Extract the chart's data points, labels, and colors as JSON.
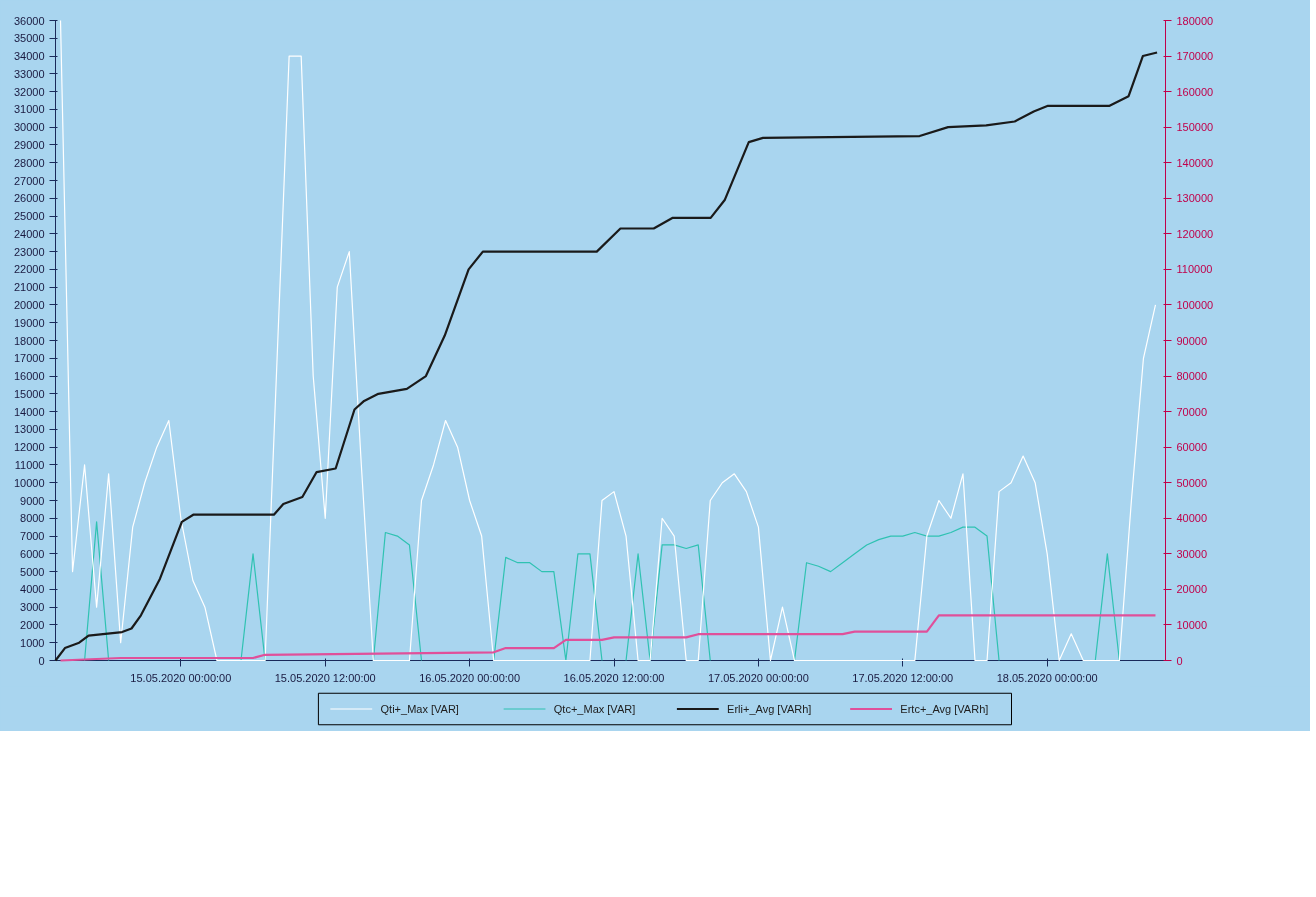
{
  "chart_data": {
    "type": "line",
    "x": [
      "2020-05-14T14:00",
      "2020-05-14T15:00",
      "2020-05-14T16:00",
      "2020-05-14T17:00",
      "2020-05-14T18:00",
      "2020-05-14T19:00",
      "2020-05-14T20:00",
      "2020-05-14T21:00",
      "2020-05-14T22:00",
      "2020-05-14T23:00",
      "2020-05-15T00:00",
      "2020-05-15T01:00",
      "2020-05-15T02:00",
      "2020-05-15T03:00",
      "2020-05-15T04:00",
      "2020-05-15T05:00",
      "2020-05-15T06:00",
      "2020-05-15T07:00",
      "2020-05-15T08:00",
      "2020-05-15T09:00",
      "2020-05-15T10:00",
      "2020-05-15T11:00",
      "2020-05-15T12:00",
      "2020-05-15T13:00",
      "2020-05-15T14:00",
      "2020-05-15T15:00",
      "2020-05-15T16:00",
      "2020-05-15T17:00",
      "2020-05-15T18:00",
      "2020-05-15T19:00",
      "2020-05-15T20:00",
      "2020-05-15T21:00",
      "2020-05-15T22:00",
      "2020-05-15T23:00",
      "2020-05-16T00:00",
      "2020-05-16T01:00",
      "2020-05-16T02:00",
      "2020-05-16T03:00",
      "2020-05-16T04:00",
      "2020-05-16T05:00",
      "2020-05-16T06:00",
      "2020-05-16T07:00",
      "2020-05-16T08:00",
      "2020-05-16T09:00",
      "2020-05-16T10:00",
      "2020-05-16T11:00",
      "2020-05-16T12:00",
      "2020-05-16T13:00",
      "2020-05-16T14:00",
      "2020-05-16T15:00",
      "2020-05-16T16:00",
      "2020-05-16T17:00",
      "2020-05-16T18:00",
      "2020-05-16T19:00",
      "2020-05-16T20:00",
      "2020-05-16T21:00",
      "2020-05-16T22:00",
      "2020-05-16T23:00",
      "2020-05-17T00:00",
      "2020-05-17T01:00",
      "2020-05-17T02:00",
      "2020-05-17T03:00",
      "2020-05-17T04:00",
      "2020-05-17T05:00",
      "2020-05-17T06:00",
      "2020-05-17T07:00",
      "2020-05-17T08:00",
      "2020-05-17T09:00",
      "2020-05-17T10:00",
      "2020-05-17T11:00",
      "2020-05-17T12:00",
      "2020-05-17T13:00",
      "2020-05-17T14:00",
      "2020-05-17T15:00",
      "2020-05-17T16:00",
      "2020-05-17T17:00",
      "2020-05-17T18:00",
      "2020-05-17T19:00",
      "2020-05-17T20:00",
      "2020-05-17T21:00",
      "2020-05-17T22:00",
      "2020-05-17T23:00",
      "2020-05-18T00:00",
      "2020-05-18T01:00",
      "2020-05-18T02:00",
      "2020-05-18T03:00",
      "2020-05-18T04:00",
      "2020-05-18T05:00",
      "2020-05-18T06:00",
      "2020-05-18T07:00",
      "2020-05-18T08:00",
      "2020-05-18T09:00"
    ],
    "series": [
      {
        "name": "Qti+_Max [VAR]",
        "color": "#ffffff",
        "values": [
          36000,
          5000,
          11000,
          3000,
          10500,
          1000,
          7500,
          10000,
          12000,
          13500,
          8000,
          4500,
          3000,
          0,
          0,
          0,
          0,
          0,
          17000,
          34000,
          34000,
          16000,
          8000,
          21000,
          23000,
          11000,
          0,
          0,
          0,
          0,
          9000,
          11000,
          13500,
          12000,
          9000,
          7000,
          0,
          0,
          0,
          0,
          0,
          0,
          0,
          0,
          0,
          9000,
          9500,
          7000,
          0,
          0,
          8000,
          7000,
          0,
          0,
          9000,
          10000,
          10500,
          9500,
          7500,
          0,
          3000,
          0,
          0,
          0,
          0,
          0,
          0,
          0,
          0,
          0,
          0,
          0,
          7000,
          9000,
          8000,
          10500,
          0,
          0,
          9500,
          10000,
          11500,
          10000,
          6000,
          0,
          1500,
          0,
          0,
          0,
          0,
          9000,
          17000,
          20000
        ]
      },
      {
        "name": "Qtc+_Max [VAR]",
        "color": "#2fc2b2",
        "values": [
          null,
          null,
          0,
          7800,
          0,
          null,
          null,
          null,
          null,
          null,
          null,
          null,
          null,
          null,
          null,
          0,
          6000,
          0,
          null,
          null,
          null,
          null,
          null,
          null,
          null,
          null,
          0,
          7200,
          7000,
          6500,
          0,
          null,
          null,
          null,
          null,
          null,
          0,
          5800,
          5500,
          5500,
          5000,
          5000,
          0,
          6000,
          6000,
          0,
          null,
          0,
          6000,
          0,
          6500,
          6500,
          6300,
          6500,
          0,
          null,
          null,
          null,
          null,
          null,
          null,
          0,
          5500,
          5300,
          5000,
          5500,
          6000,
          6500,
          6800,
          7000,
          7000,
          7200,
          7000,
          7000,
          7200,
          7500,
          7500,
          7000,
          0,
          null,
          null,
          null,
          null,
          null,
          null,
          null,
          0,
          6000,
          0,
          null,
          null,
          null
        ]
      },
      {
        "name": "Erli+_Avg [VARh]",
        "color": "#1a1a1a",
        "axis": "y2",
        "x": [
          "2020-05-14T13:35",
          "2020-05-14T14:22",
          "2020-05-14T15:33",
          "2020-05-14T16:20",
          "2020-05-14T19:07",
          "2020-05-14T19:54",
          "2020-05-14T20:41",
          "2020-05-14T22:16",
          "2020-05-15T00:05",
          "2020-05-15T01:02",
          "2020-05-15T07:44",
          "2020-05-15T08:31",
          "2020-05-15T10:06",
          "2020-05-15T11:17",
          "2020-05-15T12:52",
          "2020-05-15T14:26",
          "2020-05-15T15:14",
          "2020-05-15T16:25",
          "2020-05-15T18:47",
          "2020-05-15T20:22",
          "2020-05-15T21:56",
          "2020-05-15T23:55",
          "2020-05-16T01:06",
          "2020-05-16T10:34",
          "2020-05-16T12:32",
          "2020-05-16T15:18",
          "2020-05-16T16:53",
          "2020-05-16T20:02",
          "2020-05-16T21:13",
          "2020-05-16T23:12",
          "2020-05-17T00:23",
          "2020-05-17T13:24",
          "2020-05-17T15:46",
          "2020-05-17T18:56",
          "2020-05-17T21:18",
          "2020-05-17T22:53",
          "2020-05-18T00:04",
          "2020-05-18T05:11",
          "2020-05-18T06:46",
          "2020-05-18T07:57",
          "2020-05-18T09:08"
        ],
        "values": [
          0,
          3500,
          5000,
          7000,
          8000,
          9000,
          12700,
          23000,
          39000,
          41000,
          41000,
          44000,
          46000,
          53000,
          54000,
          70600,
          73000,
          75000,
          76400,
          80000,
          91400,
          110000,
          115000,
          115000,
          121500,
          121500,
          124500,
          124500,
          129600,
          145800,
          147000,
          147500,
          150000,
          150500,
          151600,
          154400,
          156000,
          156000,
          158700,
          170000,
          171000
        ]
      },
      {
        "name": "Ertc+_Avg [VARh]",
        "color": "#e0509a",
        "axis": "y2",
        "x": [
          "2020-05-14T14:00",
          "2020-05-14T19:00",
          "2020-05-15T06:00",
          "2020-05-15T07:00",
          "2020-05-16T02:00",
          "2020-05-16T03:00",
          "2020-05-16T07:00",
          "2020-05-16T08:00",
          "2020-05-16T11:00",
          "2020-05-16T12:00",
          "2020-05-16T18:00",
          "2020-05-16T19:00",
          "2020-05-17T07:00",
          "2020-05-17T08:00",
          "2020-05-17T14:00",
          "2020-05-17T15:00",
          "2020-05-18T09:00"
        ],
        "values": [
          0,
          700,
          700,
          1600,
          2300,
          3500,
          3500,
          5800,
          5800,
          6500,
          6500,
          7400,
          7400,
          8100,
          8100,
          12700,
          12700
        ]
      }
    ],
    "xlim": [
      "2020-05-14T13:35",
      "2020-05-18T09:50"
    ],
    "xticks": [
      {
        "value": "2020-05-15T00:00",
        "label": "15.05.2020 00:00:00"
      },
      {
        "value": "2020-05-15T12:00",
        "label": "15.05.2020 12:00:00"
      },
      {
        "value": "2020-05-16T00:00",
        "label": "16.05.2020 00:00:00"
      },
      {
        "value": "2020-05-16T12:00",
        "label": "16.05.2020 12:00:00"
      },
      {
        "value": "2020-05-17T00:00",
        "label": "17.05.2020 00:00:00"
      },
      {
        "value": "2020-05-17T12:00",
        "label": "17.05.2020 12:00:00"
      },
      {
        "value": "2020-05-18T00:00",
        "label": "18.05.2020 00:00:00"
      }
    ],
    "ylim": [
      0,
      36000
    ],
    "yticks": [
      0,
      1000,
      2000,
      3000,
      4000,
      5000,
      6000,
      7000,
      8000,
      9000,
      10000,
      11000,
      12000,
      13000,
      14000,
      15000,
      16000,
      17000,
      18000,
      19000,
      20000,
      21000,
      22000,
      23000,
      24000,
      25000,
      26000,
      27000,
      28000,
      29000,
      30000,
      31000,
      32000,
      33000,
      34000,
      35000,
      36000
    ],
    "y2lim": [
      0,
      180000
    ],
    "y2ticks": [
      0,
      10000,
      20000,
      30000,
      40000,
      50000,
      60000,
      70000,
      80000,
      90000,
      100000,
      110000,
      120000,
      130000,
      140000,
      150000,
      160000,
      170000,
      180000
    ],
    "grid": false,
    "legend": "bottom",
    "marker": "none",
    "line_style": "solid"
  }
}
